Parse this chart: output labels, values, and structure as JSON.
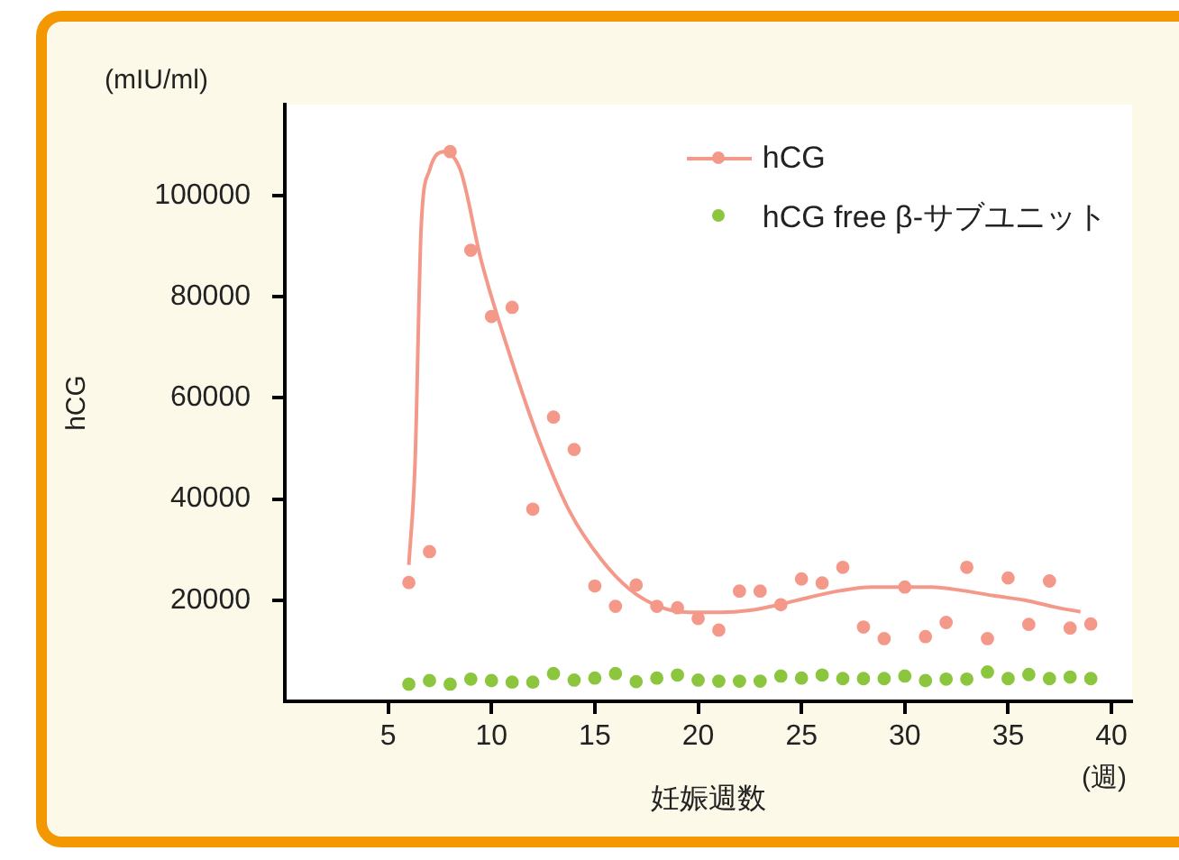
{
  "chart_data": {
    "type": "scatter",
    "xlabel": "妊娠週数",
    "ylabel": "hCG",
    "annotations": [
      "(mIU/ml)",
      "(週)"
    ],
    "xlim": [
      0,
      41
    ],
    "xticks": [
      5,
      10,
      15,
      20,
      25,
      30,
      35,
      40
    ],
    "ylim": [
      0,
      118000
    ],
    "yticks": [
      20000,
      40000,
      60000,
      80000,
      100000
    ],
    "legend": "top right",
    "marker": "circle",
    "series": [
      {
        "name": "hCG",
        "type": "scatter",
        "color": "#f4998a",
        "x": [
          6,
          7,
          8,
          9,
          10,
          11,
          12,
          13,
          14,
          15,
          16,
          17,
          18,
          19,
          20,
          21,
          22,
          23,
          24,
          25,
          26,
          27,
          28,
          29,
          30,
          31,
          32,
          33,
          34,
          35,
          36,
          37,
          38,
          39
        ],
        "values": [
          23500,
          29600,
          108700,
          89200,
          76100,
          77900,
          38000,
          56200,
          49800,
          22800,
          18800,
          23000,
          18800,
          18500,
          16400,
          14100,
          21800,
          21800,
          19100,
          24200,
          23400,
          26500,
          14700,
          12400,
          22600,
          12800,
          15600,
          26500,
          12400,
          24400,
          15200,
          23800,
          14500,
          15300
        ]
      },
      {
        "type": "line",
        "color": "#f4998a",
        "marker": "none",
        "x": [
          6.0,
          6.3,
          6.6,
          7.0,
          7.7,
          8.5,
          9.5,
          10.9,
          12.4,
          13.8,
          15.3,
          16.7,
          18.2,
          19.6,
          21.1,
          22.5,
          24.0,
          25.4,
          26.9,
          28.4,
          30.0,
          31.3,
          32.8,
          34.3,
          35.8,
          37.2,
          38.5
        ],
        "values": [
          27000,
          47000,
          94000,
          105000,
          108700,
          105000,
          87200,
          68300,
          50600,
          37400,
          28100,
          22100,
          18600,
          17600,
          17600,
          18000,
          19200,
          20600,
          21900,
          22600,
          22600,
          22600,
          21900,
          20900,
          20000,
          18700,
          17700
        ]
      },
      {
        "name": "hCG free β-サブユニット",
        "type": "scatter",
        "color": "#8cc63f",
        "x": [
          6,
          7,
          8,
          9,
          10,
          11,
          12,
          13,
          14,
          15,
          16,
          17,
          18,
          19,
          20,
          21,
          22,
          23,
          24,
          25,
          26,
          27,
          28,
          29,
          30,
          31,
          32,
          33,
          34,
          35,
          36,
          37,
          38,
          39
        ],
        "values": [
          3400,
          4100,
          3400,
          4400,
          4100,
          3800,
          3800,
          5500,
          4200,
          4600,
          5500,
          3900,
          4600,
          5200,
          4200,
          4000,
          4000,
          4000,
          5000,
          4600,
          5200,
          4500,
          4500,
          4500,
          5000,
          4100,
          4400,
          4400,
          5800,
          4500,
          5300,
          4500,
          4800,
          4500
        ]
      }
    ]
  }
}
